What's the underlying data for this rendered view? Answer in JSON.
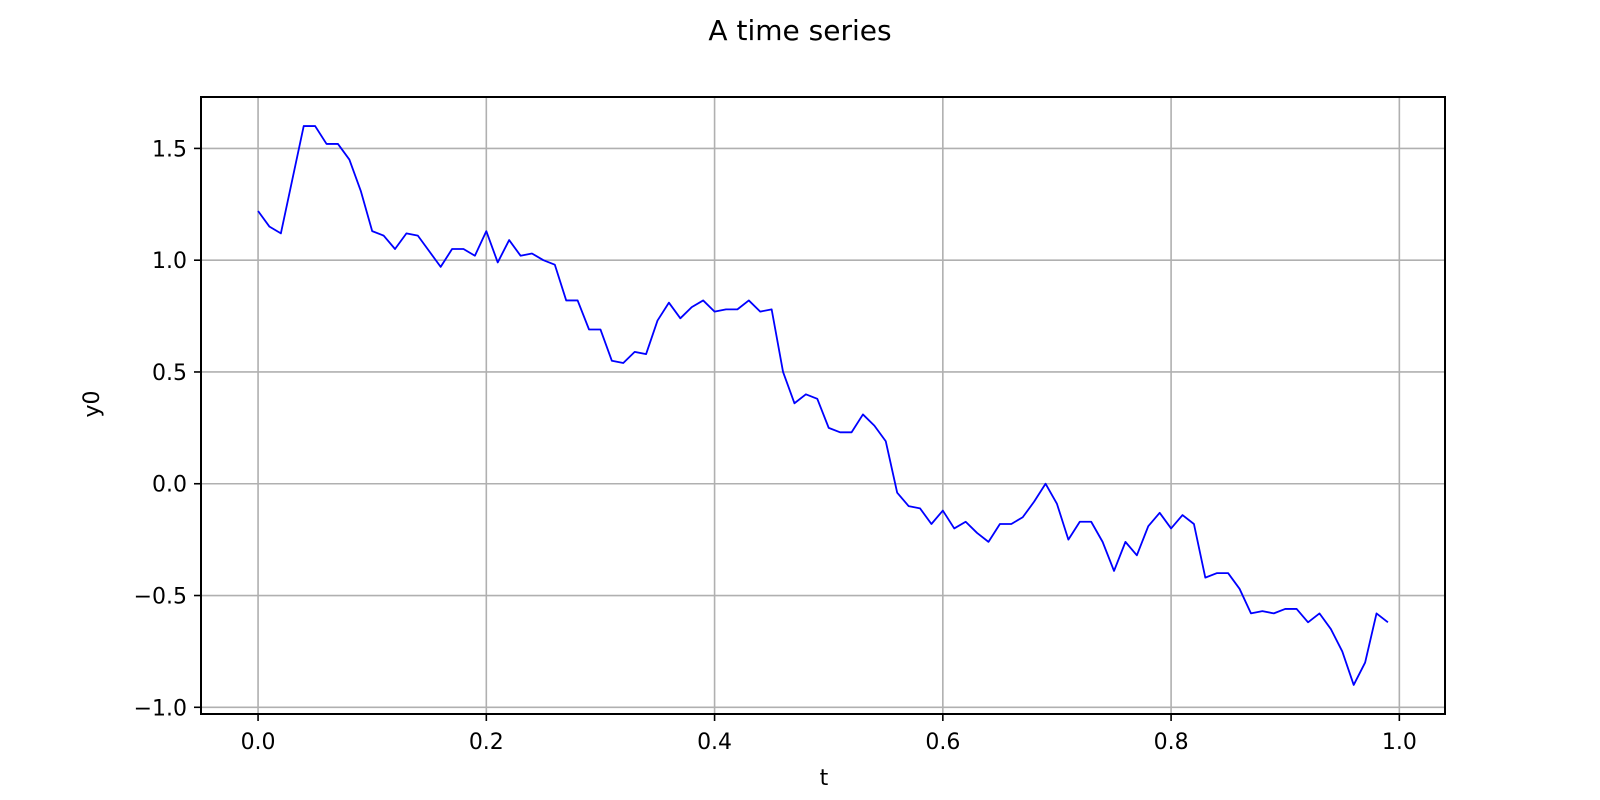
{
  "chart_data": {
    "type": "line",
    "title": "A time series",
    "xlabel": "t",
    "ylabel": "y0",
    "xlim": [
      -0.05,
      1.04
    ],
    "ylim": [
      -1.03,
      1.73
    ],
    "grid": true,
    "x_ticks": [
      "0.0",
      "0.2",
      "0.4",
      "0.6",
      "0.8",
      "1.0"
    ],
    "x_tick_values": [
      0.0,
      0.2,
      0.4,
      0.6,
      0.8,
      1.0
    ],
    "y_ticks": [
      "−1.0",
      "−0.5",
      "0.0",
      "0.5",
      "1.0",
      "1.5"
    ],
    "y_tick_values": [
      -1.0,
      -0.5,
      0.0,
      0.5,
      1.0,
      1.5
    ],
    "colors": {
      "line": "#0000ff",
      "grid": "#b0b0b0",
      "frame": "#000000"
    },
    "series": [
      {
        "x": [
          0.0,
          0.01,
          0.02,
          0.03,
          0.04,
          0.05,
          0.06,
          0.07,
          0.08,
          0.09,
          0.1,
          0.11,
          0.12,
          0.13,
          0.14,
          0.15,
          0.16,
          0.17,
          0.18,
          0.19,
          0.2,
          0.21,
          0.22,
          0.23,
          0.24,
          0.25,
          0.26,
          0.27,
          0.28,
          0.29,
          0.3,
          0.31,
          0.32,
          0.33,
          0.34,
          0.35,
          0.36,
          0.37,
          0.38,
          0.39,
          0.4,
          0.41,
          0.42,
          0.43,
          0.44,
          0.45,
          0.46,
          0.47,
          0.48,
          0.49,
          0.5,
          0.51,
          0.52,
          0.53,
          0.54,
          0.55,
          0.56,
          0.57,
          0.58,
          0.59,
          0.6,
          0.61,
          0.62,
          0.63,
          0.64,
          0.65,
          0.66,
          0.67,
          0.68,
          0.69,
          0.7,
          0.71,
          0.72,
          0.73,
          0.74,
          0.75,
          0.76,
          0.77,
          0.78,
          0.79,
          0.8,
          0.81,
          0.82,
          0.83,
          0.84,
          0.85,
          0.86,
          0.87,
          0.88,
          0.89,
          0.9,
          0.91,
          0.92,
          0.93,
          0.94,
          0.95,
          0.96,
          0.97,
          0.98,
          0.99
        ],
        "y": [
          1.22,
          1.15,
          1.12,
          1.36,
          1.6,
          1.6,
          1.52,
          1.52,
          1.45,
          1.31,
          1.13,
          1.11,
          1.05,
          1.12,
          1.11,
          1.04,
          0.97,
          1.05,
          1.05,
          1.02,
          1.13,
          0.99,
          1.09,
          1.02,
          1.03,
          1.0,
          0.98,
          0.82,
          0.82,
          0.69,
          0.69,
          0.55,
          0.54,
          0.59,
          0.58,
          0.73,
          0.81,
          0.74,
          0.79,
          0.82,
          0.77,
          0.78,
          0.78,
          0.82,
          0.77,
          0.78,
          0.5,
          0.36,
          0.4,
          0.38,
          0.25,
          0.23,
          0.23,
          0.31,
          0.26,
          0.19,
          -0.04,
          -0.1,
          -0.11,
          -0.18,
          -0.12,
          -0.2,
          -0.17,
          -0.22,
          -0.26,
          -0.18,
          -0.18,
          -0.15,
          -0.08,
          0.0,
          -0.09,
          -0.25,
          -0.17,
          -0.17,
          -0.26,
          -0.39,
          -0.26,
          -0.32,
          -0.19,
          -0.13,
          -0.2,
          -0.14,
          -0.18,
          -0.42,
          -0.4,
          -0.4,
          -0.47,
          -0.58,
          -0.57,
          -0.58,
          -0.56,
          -0.56,
          -0.62,
          -0.58,
          -0.65,
          -0.75,
          -0.9,
          -0.8,
          -0.58,
          -0.62
        ]
      }
    ]
  }
}
